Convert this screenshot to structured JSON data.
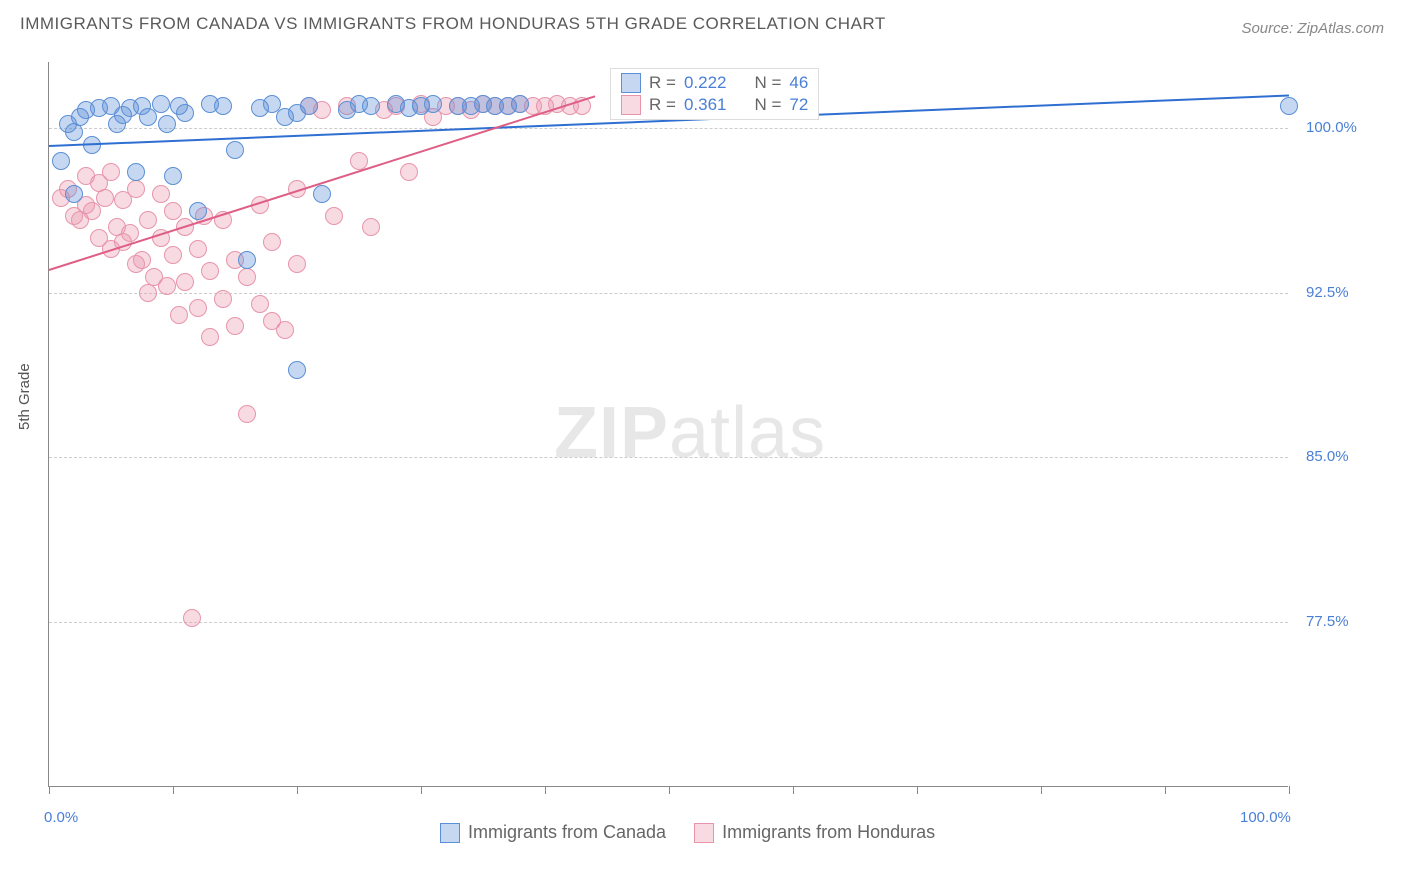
{
  "title": "IMMIGRANTS FROM CANADA VS IMMIGRANTS FROM HONDURAS 5TH GRADE CORRELATION CHART",
  "source": "Source: ZipAtlas.com",
  "ylabel": "5th Grade",
  "watermark_zip": "ZIP",
  "watermark_atlas": "atlas",
  "chart": {
    "type": "scatter",
    "xlim": [
      0,
      100
    ],
    "ylim": [
      70,
      103
    ],
    "xticks": [
      0,
      10,
      20,
      30,
      40,
      50,
      60,
      70,
      80,
      90,
      100
    ],
    "xtick_labels": {
      "0": "0.0%",
      "100": "100.0%"
    },
    "yticks": [
      77.5,
      85.0,
      92.5,
      100.0
    ],
    "ytick_labels": [
      "77.5%",
      "85.0%",
      "92.5%",
      "100.0%"
    ],
    "background_color": "#ffffff",
    "grid_color": "#cccccc",
    "axis_color": "#888888",
    "tick_label_color": "#4a7fd6",
    "marker_radius": 9,
    "marker_opacity": 0.45,
    "series": [
      {
        "name": "Immigrants from Canada",
        "color": "#5b8fd6",
        "fill": "rgba(91,143,214,0.35)",
        "stroke": "#5b8fd6",
        "r": "0.222",
        "n": "46",
        "trend": {
          "x1": 0,
          "y1": 99.2,
          "x2": 100,
          "y2": 101.5,
          "color": "#2e6fd1",
          "width": 2
        },
        "points": [
          [
            1,
            98.5
          ],
          [
            1.5,
            100.2
          ],
          [
            2,
            99.8
          ],
          [
            2.5,
            100.5
          ],
          [
            3,
            100.8
          ],
          [
            3.5,
            99.2
          ],
          [
            4,
            100.9
          ],
          [
            5,
            101.0
          ],
          [
            5.5,
            100.2
          ],
          [
            6,
            100.6
          ],
          [
            6.5,
            100.9
          ],
          [
            7,
            98.0
          ],
          [
            7.5,
            101.0
          ],
          [
            8,
            100.5
          ],
          [
            9,
            101.1
          ],
          [
            9.5,
            100.2
          ],
          [
            10,
            97.8
          ],
          [
            10.5,
            101.0
          ],
          [
            11,
            100.7
          ],
          [
            12,
            96.2
          ],
          [
            13,
            101.1
          ],
          [
            14,
            101.0
          ],
          [
            15,
            99.0
          ],
          [
            16,
            94.0
          ],
          [
            17,
            100.9
          ],
          [
            18,
            101.1
          ],
          [
            19,
            100.5
          ],
          [
            20,
            89.0
          ],
          [
            21,
            101.0
          ],
          [
            22,
            97.0
          ],
          [
            24,
            100.8
          ],
          [
            25,
            101.1
          ],
          [
            26,
            101.0
          ],
          [
            28,
            101.1
          ],
          [
            29,
            100.9
          ],
          [
            30,
            101.0
          ],
          [
            31,
            101.1
          ],
          [
            33,
            101.0
          ],
          [
            34,
            101.0
          ],
          [
            35,
            101.1
          ],
          [
            36,
            101.0
          ],
          [
            37,
            101.0
          ],
          [
            38,
            101.1
          ],
          [
            100,
            101.0
          ],
          [
            20,
            100.7
          ],
          [
            2,
            97.0
          ]
        ]
      },
      {
        "name": "Immigrants from Honduras",
        "color": "#e895ab",
        "fill": "rgba(232,149,171,0.35)",
        "stroke": "#e895ab",
        "r": "0.361",
        "n": "72",
        "trend": {
          "x1": 0,
          "y1": 93.6,
          "x2": 44,
          "y2": 101.5,
          "color": "#de5e85",
          "width": 2
        },
        "points": [
          [
            1,
            96.8
          ],
          [
            1.5,
            97.2
          ],
          [
            2,
            96.0
          ],
          [
            2.5,
            95.8
          ],
          [
            3,
            96.5
          ],
          [
            3,
            97.8
          ],
          [
            3.5,
            96.2
          ],
          [
            4,
            95.0
          ],
          [
            4,
            97.5
          ],
          [
            4.5,
            96.8
          ],
          [
            5,
            94.5
          ],
          [
            5,
            98.0
          ],
          [
            5.5,
            95.5
          ],
          [
            6,
            94.8
          ],
          [
            6,
            96.7
          ],
          [
            6.5,
            95.2
          ],
          [
            7,
            93.8
          ],
          [
            7,
            97.2
          ],
          [
            7.5,
            94.0
          ],
          [
            8,
            92.5
          ],
          [
            8,
            95.8
          ],
          [
            8.5,
            93.2
          ],
          [
            9,
            95.0
          ],
          [
            9,
            97.0
          ],
          [
            9.5,
            92.8
          ],
          [
            10,
            96.2
          ],
          [
            10,
            94.2
          ],
          [
            10.5,
            91.5
          ],
          [
            11,
            95.5
          ],
          [
            11,
            93.0
          ],
          [
            11.5,
            77.7
          ],
          [
            12,
            94.5
          ],
          [
            12,
            91.8
          ],
          [
            12.5,
            96.0
          ],
          [
            13,
            93.5
          ],
          [
            13,
            90.5
          ],
          [
            14,
            92.2
          ],
          [
            14,
            95.8
          ],
          [
            15,
            94.0
          ],
          [
            15,
            91.0
          ],
          [
            16,
            93.2
          ],
          [
            16,
            87.0
          ],
          [
            17,
            92.0
          ],
          [
            17,
            96.5
          ],
          [
            18,
            91.2
          ],
          [
            18,
            94.8
          ],
          [
            19,
            90.8
          ],
          [
            20,
            93.8
          ],
          [
            20,
            97.2
          ],
          [
            21,
            101.0
          ],
          [
            22,
            100.8
          ],
          [
            23,
            96.0
          ],
          [
            24,
            101.0
          ],
          [
            25,
            98.5
          ],
          [
            26,
            95.5
          ],
          [
            27,
            100.8
          ],
          [
            28,
            101.0
          ],
          [
            29,
            98.0
          ],
          [
            30,
            101.1
          ],
          [
            31,
            100.5
          ],
          [
            32,
            101.0
          ],
          [
            33,
            101.0
          ],
          [
            34,
            100.8
          ],
          [
            35,
            101.1
          ],
          [
            36,
            101.0
          ],
          [
            37,
            101.0
          ],
          [
            38,
            101.1
          ],
          [
            39,
            101.0
          ],
          [
            40,
            101.0
          ],
          [
            41,
            101.1
          ],
          [
            42,
            101.0
          ],
          [
            43,
            101.0
          ]
        ]
      }
    ]
  },
  "legend_top": {
    "r_label": "R =",
    "n_label": "N ="
  },
  "legend_bottom": {
    "items": [
      "Immigrants from Canada",
      "Immigrants from Honduras"
    ]
  }
}
